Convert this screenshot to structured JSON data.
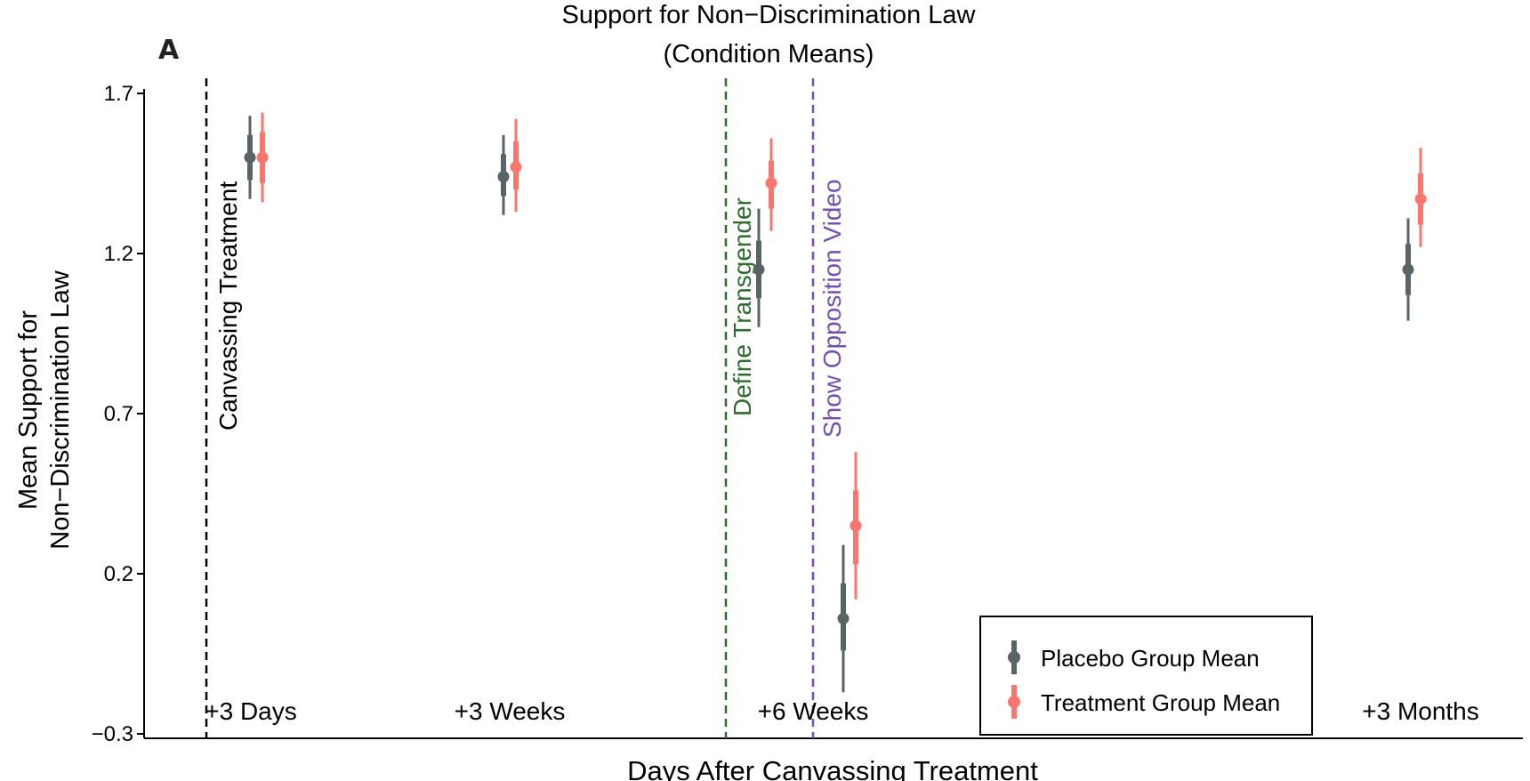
{
  "panel_label": "A",
  "chart_data": {
    "type": "scatter",
    "title": "Support for Non−Discrimination Law",
    "subtitle": "(Condition Means)",
    "xlabel": "Days After Canvassing Treatment",
    "ylabel_line1": "Mean Support for",
    "ylabel_line2": "Non−Discrimination Law",
    "ylim": [
      -0.3,
      1.7
    ],
    "yticks": [
      -0.3,
      0.2,
      0.7,
      1.2,
      1.7
    ],
    "ytick_labels": [
      "−0.3",
      "0.2",
      "0.7",
      "1.2",
      "1.7"
    ],
    "grid": false,
    "legend_position": "bottom-right",
    "time_points": [
      {
        "label": "+3 Days",
        "order": 1
      },
      {
        "label": "+3 Weeks",
        "order": 2
      },
      {
        "label": "+6 Weeks",
        "order": 3
      },
      {
        "label": "+3 Months",
        "order": 4
      }
    ],
    "series": [
      {
        "name": "Placebo Group Mean",
        "color": "#5a6466",
        "points": [
          {
            "t": 1,
            "mean": 1.5,
            "ci_inner": [
              1.43,
              1.57
            ],
            "ci_outer": [
              1.37,
              1.63
            ]
          },
          {
            "t": 2,
            "mean": 1.44,
            "ci_inner": [
              1.38,
              1.51
            ],
            "ci_outer": [
              1.32,
              1.57
            ]
          },
          {
            "t": 3,
            "mean": 1.15,
            "ci_inner": [
              1.06,
              1.24
            ],
            "ci_outer": [
              0.97,
              1.34
            ]
          },
          {
            "t": 3.55,
            "mean": 0.06,
            "ci_inner": [
              -0.04,
              0.17
            ],
            "ci_outer": [
              -0.17,
              0.29
            ]
          },
          {
            "t": 4,
            "mean": 1.15,
            "ci_inner": [
              1.07,
              1.23
            ],
            "ci_outer": [
              0.99,
              1.31
            ]
          }
        ]
      },
      {
        "name": "Treatment Group Mean",
        "color": "#f8766d",
        "points": [
          {
            "t": 1,
            "mean": 1.5,
            "ci_inner": [
              1.42,
              1.58
            ],
            "ci_outer": [
              1.36,
              1.64
            ]
          },
          {
            "t": 2,
            "mean": 1.47,
            "ci_inner": [
              1.4,
              1.55
            ],
            "ci_outer": [
              1.33,
              1.62
            ]
          },
          {
            "t": 3,
            "mean": 1.42,
            "ci_inner": [
              1.34,
              1.49
            ],
            "ci_outer": [
              1.27,
              1.56
            ]
          },
          {
            "t": 3.55,
            "mean": 0.35,
            "ci_inner": [
              0.23,
              0.46
            ],
            "ci_outer": [
              0.12,
              0.58
            ]
          },
          {
            "t": 4,
            "mean": 1.37,
            "ci_inner": [
              1.29,
              1.45
            ],
            "ci_outer": [
              1.22,
              1.53
            ]
          }
        ]
      }
    ],
    "event_lines": [
      {
        "label": "Canvassing Treatment",
        "color": "#000000",
        "t": 0.6
      },
      {
        "label": "Define Transgender",
        "color": "#2e6b2e",
        "t": 2.85
      },
      {
        "label": "Show Opposition Video",
        "color": "#7350b0",
        "t": 3.4
      }
    ]
  }
}
